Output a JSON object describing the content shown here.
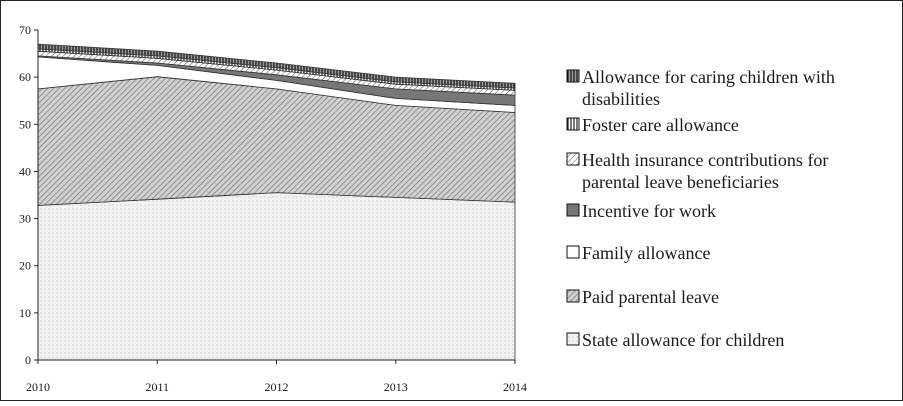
{
  "chart_data": {
    "type": "area",
    "stacked": true,
    "x": [
      "2010",
      "2011",
      "2012",
      "2013",
      "2014"
    ],
    "ylim": [
      0,
      70
    ],
    "yticks": [
      "0",
      "10",
      "20",
      "30",
      "40",
      "50",
      "60",
      "70"
    ],
    "grid": false,
    "legend_position": "right",
    "series": [
      {
        "name": "State allowance for children",
        "values": [
          32.8,
          34.1,
          35.5,
          34.5,
          33.5
        ],
        "fill": "#eeeeee",
        "pattern": "dots"
      },
      {
        "name": "Paid parental leave",
        "values": [
          24.7,
          26.0,
          22.0,
          19.5,
          19.0
        ],
        "fill": "#bdbdbd",
        "pattern": "diag"
      },
      {
        "name": "Family allowance",
        "values": [
          6.8,
          2.4,
          1.8,
          1.5,
          1.5
        ],
        "fill": "#ffffff",
        "pattern": "none"
      },
      {
        "name": "Incentive for work",
        "values": [
          0.2,
          0.5,
          1.2,
          2.0,
          2.2
        ],
        "fill": "#777777",
        "pattern": "none"
      },
      {
        "name": "Health insurance contributions for parental leave beneficiaries",
        "values": [
          1.0,
          1.0,
          1.0,
          1.0,
          1.0
        ],
        "fill": "#f4f4f4",
        "pattern": "diag"
      },
      {
        "name": "Foster care allowance",
        "values": [
          0.5,
          0.5,
          0.5,
          0.5,
          0.5
        ],
        "fill": "#ffffff",
        "pattern": "vlines"
      },
      {
        "name": "Allowance for caring children with disabilities",
        "values": [
          1.0,
          1.0,
          1.0,
          1.0,
          1.0
        ],
        "fill": "#8a8a8a",
        "pattern": "vlines"
      }
    ],
    "legend": [
      {
        "series": 6,
        "lines": [
          "Allowance for caring children with",
          "disabilities"
        ]
      },
      {
        "series": 5,
        "lines": [
          "Foster care allowance"
        ]
      },
      {
        "series": 4,
        "lines": [
          "Health insurance contributions for",
          "parental leave beneficiaries"
        ]
      },
      {
        "series": 3,
        "lines": [
          "Incentive for work"
        ]
      },
      {
        "series": 2,
        "lines": [
          "Family allowance"
        ]
      },
      {
        "series": 1,
        "lines": [
          "Paid parental leave"
        ]
      },
      {
        "series": 0,
        "lines": [
          "State allowance for children"
        ]
      }
    ]
  }
}
